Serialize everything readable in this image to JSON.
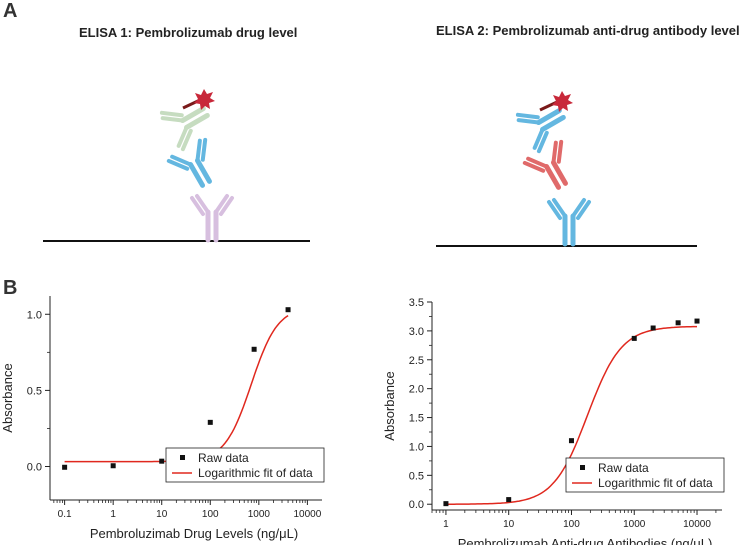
{
  "panels": {
    "a_label": "A",
    "b_label": "B"
  },
  "elisa": {
    "title1": "ELISA 1: Pembrolizumab drug level",
    "title2": "ELISA 2: Pembrolizumab anti-drug antibody level"
  },
  "colors": {
    "green": "#c9dfc4",
    "blue": "#64b7e0",
    "purple": "#dcc4e3",
    "red_antibody": "#e06a6a",
    "star": "#c8283a",
    "fit_line": "#e0281e",
    "points": "#111111"
  },
  "chart_data": [
    {
      "type": "scatter",
      "xscale": "log",
      "xlabel": "Pembroluzimab Drug Levels (ng/μL)",
      "ylabel": "Absorbance",
      "xlim": [
        0.05,
        20000
      ],
      "ylim": [
        -0.22,
        1.12
      ],
      "xticks": [
        0.1,
        1,
        10,
        100,
        1000,
        10000
      ],
      "xtick_labels": [
        "0.1",
        "1",
        "10",
        "100",
        "1000",
        "10000"
      ],
      "yticks": [
        0.0,
        0.5,
        1.0
      ],
      "ytick_labels": [
        "0.0",
        "0.5",
        "1.0"
      ],
      "series": [
        {
          "name": "Raw data",
          "kind": "points",
          "x": [
            0.1,
            1,
            10,
            100,
            800,
            4000
          ],
          "y": [
            -0.005,
            0.005,
            0.035,
            0.29,
            0.77,
            1.03
          ]
        },
        {
          "name": "Logarithmic fit of data",
          "kind": "line",
          "fit": {
            "bottom": 0.032,
            "top": 1.05,
            "ec50": 700,
            "hill": 1.6,
            "x_start": 0.1,
            "x_end": 4000
          }
        }
      ],
      "legend": [
        "Raw data",
        "Logarithmic fit of data"
      ],
      "legend_position": "bottom-right"
    },
    {
      "type": "scatter",
      "xscale": "log",
      "xlabel": "Pembrolizumab Anti-drug Antibodies (ng/μL)",
      "ylabel": "Absorbance",
      "xlim": [
        0.6,
        25000
      ],
      "ylim": [
        -0.1,
        3.5
      ],
      "xticks": [
        1,
        10,
        100,
        1000,
        10000
      ],
      "xtick_labels": [
        "1",
        "10",
        "100",
        "1000",
        "10000"
      ],
      "yticks": [
        0.0,
        0.5,
        1.0,
        1.5,
        2.0,
        2.5,
        3.0,
        3.5
      ],
      "ytick_labels": [
        "0.0",
        "0.5",
        "1.0",
        "1.5",
        "2.0",
        "2.5",
        "3.0",
        "3.5"
      ],
      "series": [
        {
          "name": "Raw data",
          "kind": "points",
          "x": [
            1,
            10,
            100,
            1000,
            2000,
            5000,
            10000
          ],
          "y": [
            0.01,
            0.08,
            1.1,
            2.87,
            3.05,
            3.14,
            3.17
          ]
        },
        {
          "name": "Logarithmic fit of data",
          "kind": "line",
          "fit": {
            "bottom": 0.0,
            "top": 3.08,
            "ec50": 180,
            "hill": 1.6,
            "x_start": 1,
            "x_end": 10000
          }
        }
      ],
      "legend": [
        "Raw data",
        "Logarithmic fit of data"
      ],
      "legend_position": "bottom-right"
    }
  ]
}
